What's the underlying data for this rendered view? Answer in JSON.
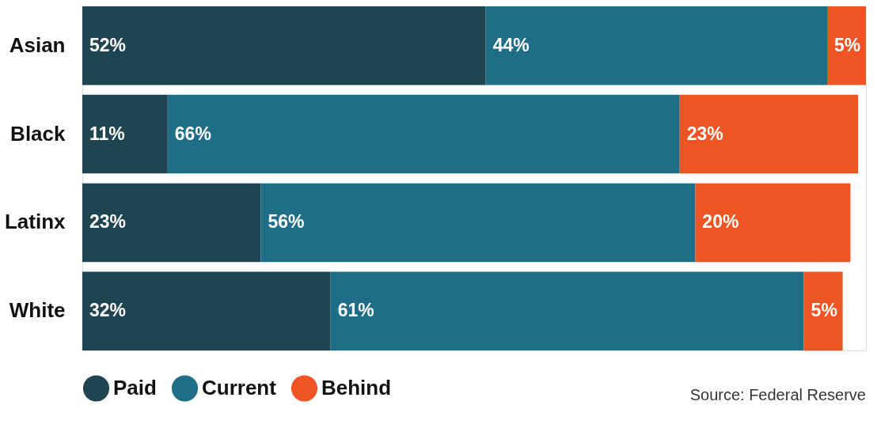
{
  "chart_data": {
    "type": "bar",
    "orientation": "horizontal",
    "stacked": true,
    "legend": "bottom",
    "grid": false,
    "categories": [
      "Asian",
      "Black",
      "Latinx",
      "White"
    ],
    "series": [
      {
        "name": "Paid",
        "color": "#1f4550",
        "values": [
          52,
          11,
          23,
          32
        ],
        "value_labels": [
          "52%",
          "11%",
          "23%",
          "32%"
        ]
      },
      {
        "name": "Current",
        "color": "#1f6e87",
        "values": [
          44,
          66,
          56,
          61
        ],
        "value_labels": [
          "44%",
          "66%",
          "56%",
          "61%"
        ]
      },
      {
        "name": "Behind",
        "color": "#ef5423",
        "values": [
          5,
          23,
          20,
          5
        ],
        "value_labels": [
          "5%",
          "23%",
          "20%",
          "5%"
        ]
      }
    ],
    "annotations": [
      "Source: Federal Reserve"
    ]
  }
}
